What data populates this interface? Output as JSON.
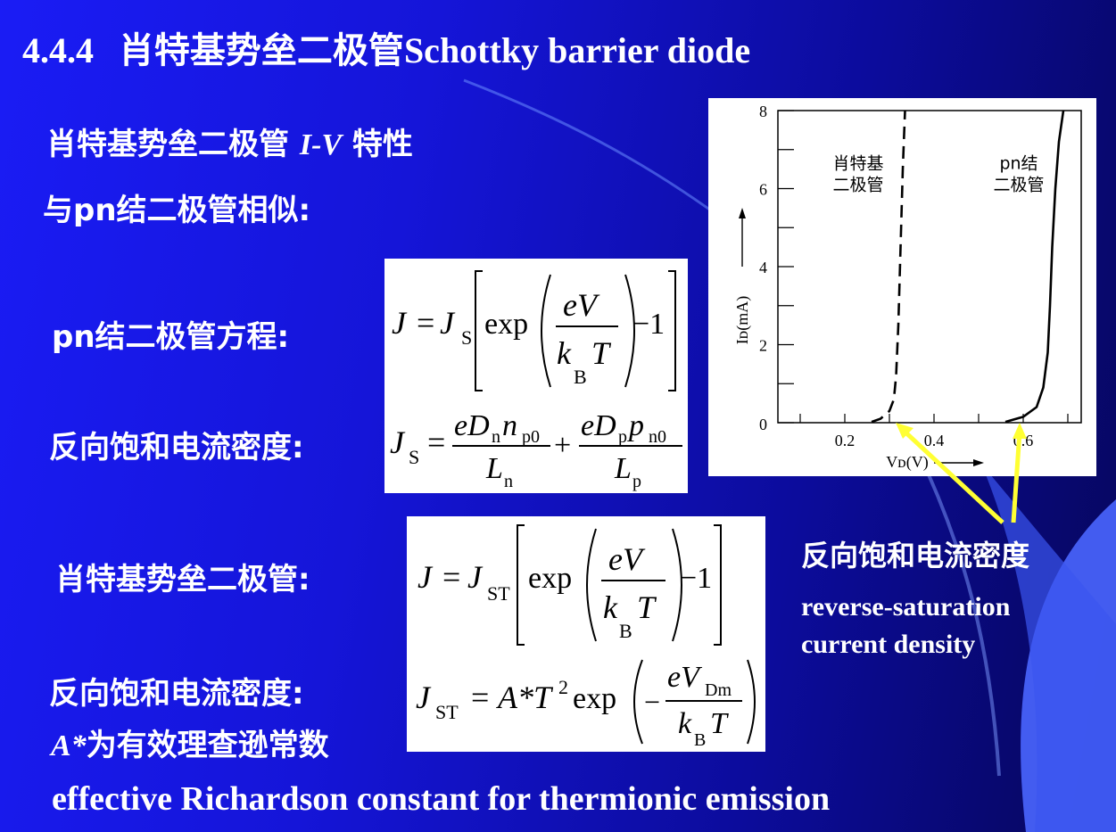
{
  "header": {
    "title_num": "4.4.4",
    "title_cn": "肖特基势垒二极管",
    "title_en": "Schottky barrier diode"
  },
  "intro": {
    "line1_a": "肖特基势垒二极管",
    "line1_iv": "I-V",
    "line1_b": "特性",
    "line2": "与pn结二极管相似:"
  },
  "labels": {
    "pn_equation": "pn结二极管方程:",
    "reverse_sat_1": "反向饱和电流密度:",
    "schottky": "肖特基势垒二极管:",
    "reverse_sat_2": "反向饱和电流密度:",
    "richardson_cn_prefix": "A*",
    "richardson_cn": "为有效理查逊常数",
    "richardson_en": "effective Richardson constant for thermionic emission"
  },
  "equations": {
    "eq1": {
      "J": "J",
      "eq": "=",
      "Js": "J",
      "Js_sub": "S",
      "exp": "exp",
      "num": "eV",
      "den": "k",
      "den_sub": "B",
      "den2": "T",
      "minus_one": "−1"
    },
    "eq2": {
      "lhs": "J",
      "lhs_sub": "S",
      "eq": "=",
      "t1_num_a": "eD",
      "t1_num_sub1": "n",
      "t1_num_b": "n",
      "t1_num_sub2": "p0",
      "t1_den": "L",
      "t1_den_sub": "n",
      "plus": "+",
      "t2_num_a": "eD",
      "t2_num_sub1": "p",
      "t2_num_b": "p",
      "t2_num_sub2": "n0",
      "t2_den": "L",
      "t2_den_sub": "p"
    },
    "eq3": {
      "J": "J",
      "eq": "=",
      "Js": "J",
      "Js_sub": "ST",
      "exp": "exp",
      "num": "eV",
      "den": "k",
      "den_sub": "B",
      "den2": "T",
      "minus_one": "−1"
    },
    "eq4": {
      "lhs": "J",
      "lhs_sub": "ST",
      "eq": "=",
      "A": "A*T",
      "sup": "2",
      "exp": "exp",
      "minus": "−",
      "num": "eV",
      "num_sub": "Dm",
      "den": "k",
      "den_sub": "B",
      "den2": "T"
    }
  },
  "annotation": {
    "cn": "反向饱和电流密度",
    "en1": "reverse-saturation",
    "en2": "current density",
    "arrow_color": "#ffff33"
  },
  "chart_data": {
    "type": "line",
    "title": "",
    "xlabel": "V_D(V)",
    "ylabel": "I_D(mA)",
    "xlim": [
      0.05,
      0.73
    ],
    "ylim": [
      0,
      8
    ],
    "x_ticks": [
      0.2,
      0.4,
      0.6
    ],
    "x_tick_labels": [
      "0.2",
      "0.4",
      "0.6"
    ],
    "y_ticks": [
      0,
      2,
      4,
      6,
      8
    ],
    "y_tick_labels": [
      "0",
      "2",
      "4",
      "6",
      "8"
    ],
    "origin_label": "0",
    "series": [
      {
        "name": "肖特基二极管",
        "label_lines": [
          "肖特基",
          "二极管"
        ],
        "style": "dashed",
        "x": [
          0.26,
          0.28,
          0.3,
          0.31,
          0.315,
          0.32,
          0.325,
          0.33,
          0.335
        ],
        "y": [
          0.02,
          0.1,
          0.3,
          0.6,
          1.2,
          2.5,
          4.5,
          6.5,
          8.0
        ]
      },
      {
        "name": "pn结二极管",
        "label_lines": [
          "pn结",
          "二极管"
        ],
        "style": "solid",
        "x": [
          0.56,
          0.6,
          0.63,
          0.645,
          0.655,
          0.66,
          0.665,
          0.672,
          0.68,
          0.69
        ],
        "y": [
          0.02,
          0.15,
          0.4,
          0.9,
          1.8,
          3.0,
          4.5,
          6.0,
          7.2,
          8.0
        ]
      }
    ]
  }
}
